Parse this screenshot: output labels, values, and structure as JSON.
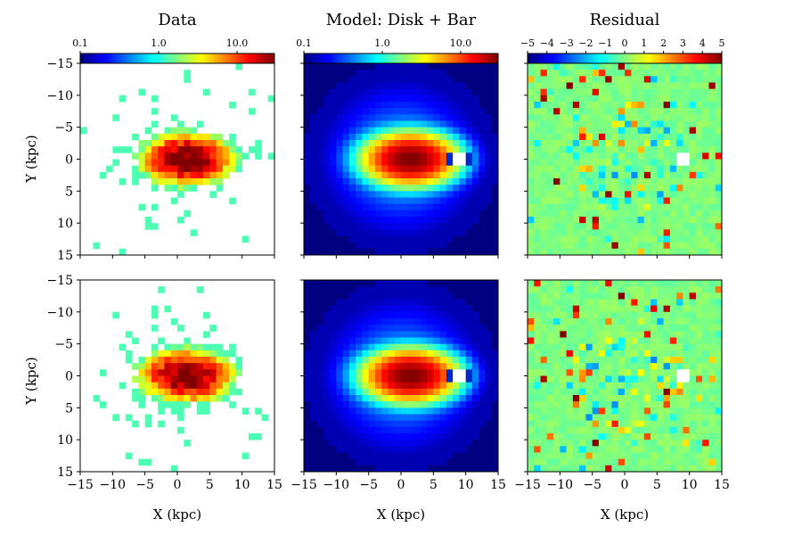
{
  "chart_data": {
    "type": "heatmap",
    "grid": {
      "nx": 30,
      "ny": 30,
      "xlim": [
        -15,
        15
      ],
      "ylim": [
        -15,
        15
      ],
      "y_inverted": true
    },
    "column_titles": [
      "Data",
      "Model: Disk + Bar",
      "Residual"
    ],
    "xlabel": "X (kpc)",
    "ylabel": "Y (kpc)",
    "x_ticks": [
      "-15",
      "-10",
      "-5",
      "0",
      "5",
      "10",
      "15"
    ],
    "y_ticks": [
      "-15",
      "-10",
      "-5",
      "0",
      "5",
      "10",
      "15"
    ],
    "colormap": "jet",
    "colorbars": [
      {
        "panel": "Data",
        "scale": "log",
        "range": [
          0.1,
          30
        ],
        "ticks": [
          "0.1",
          "1.0",
          "10.0"
        ]
      },
      {
        "panel": "Model: Disk + Bar",
        "scale": "log",
        "range": [
          0.1,
          30
        ],
        "ticks": [
          "0.1",
          "1.0",
          "10.0"
        ]
      },
      {
        "panel": "Residual",
        "scale": "linear",
        "range": [
          -5,
          5
        ],
        "ticks": [
          "−5",
          "−4",
          "−3",
          "−2",
          "−1",
          "0",
          "1",
          "2",
          "3",
          "4",
          "5"
        ]
      }
    ],
    "rows": 2,
    "model": {
      "bar_center_kpc": [
        1.5,
        0
      ],
      "bar_peak": 30,
      "bar_scale_kpc": [
        3.2,
        1.8
      ],
      "disk_amplitude": 0.7,
      "disk_scale_kpc": 6.5,
      "floor_outside_radius_kpc": 15,
      "masked_feature_kpc": [
        9,
        0
      ]
    },
    "panels": [
      {
        "row": 1,
        "name": "Data"
      },
      {
        "row": 1,
        "name": "Model: Disk + Bar"
      },
      {
        "row": 1,
        "name": "Residual"
      },
      {
        "row": 2,
        "name": "Data"
      },
      {
        "row": 2,
        "name": "Model: Disk + Bar"
      },
      {
        "row": 2,
        "name": "Residual"
      }
    ]
  },
  "colors": {
    "background": "#ffffff",
    "axis": "#000000"
  }
}
